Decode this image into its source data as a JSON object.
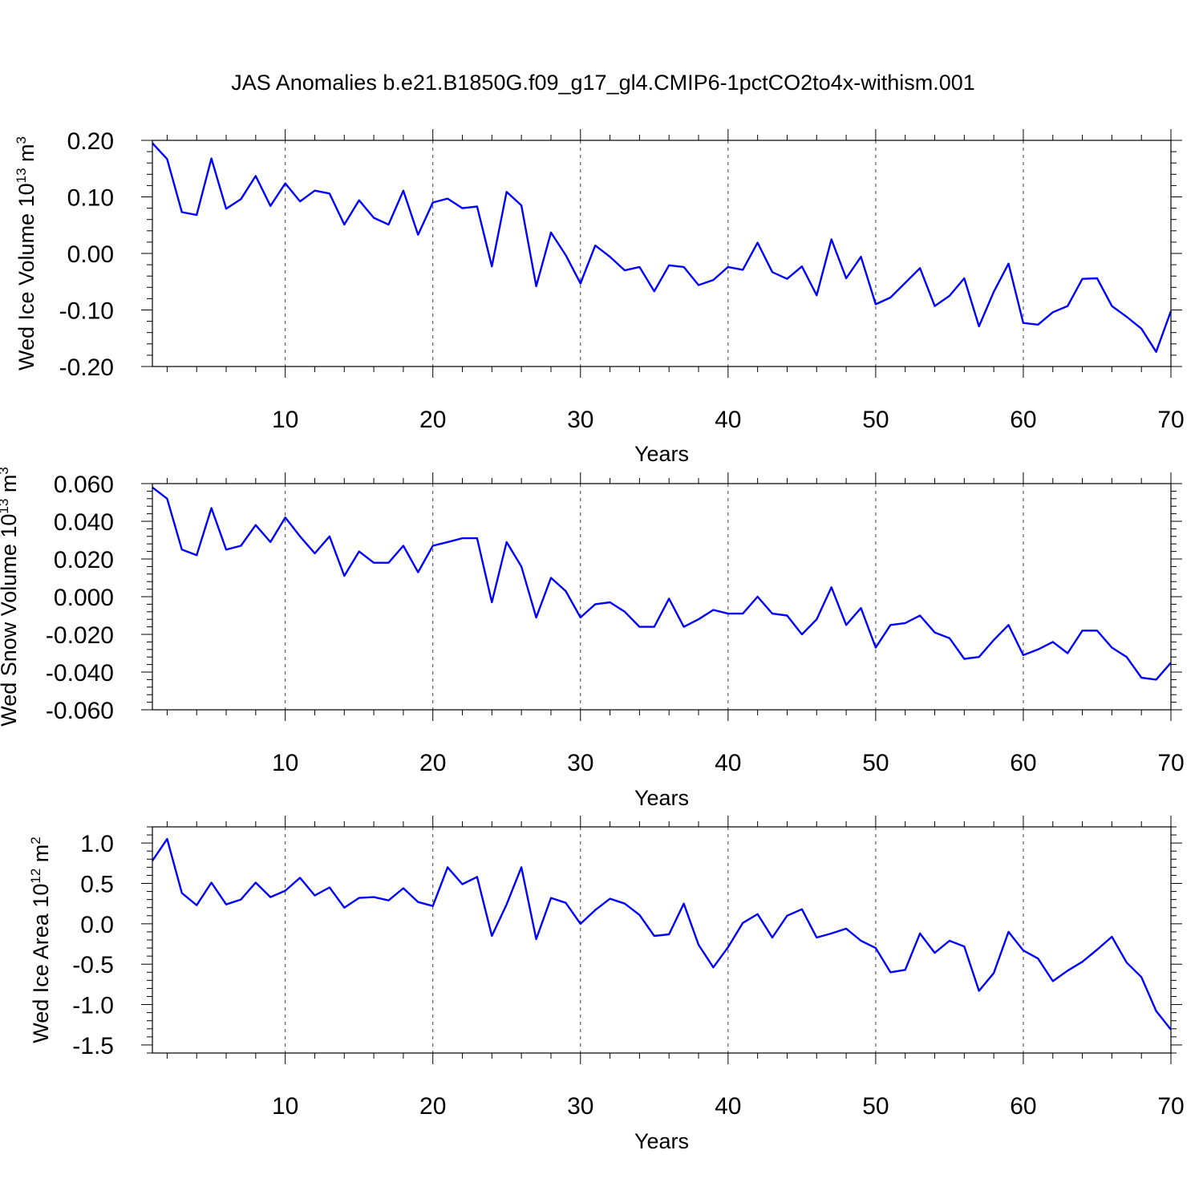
{
  "figure": {
    "title": "JAS Anomalies b.e21.B1850G.f09_g17_gl4.CMIP6-1pctCO2to4x-withism.001"
  },
  "chart_data": [
    {
      "type": "line",
      "xlabel": "Years",
      "ylabel": "Wed Ice Volume",
      "ylabel_unit": {
        "base": "10",
        "exp": "13",
        "unit": "m",
        "unit_exp": "3"
      },
      "xlim": [
        1,
        70
      ],
      "ylim": [
        -0.2,
        0.2
      ],
      "x_ticks": [
        "10",
        "20",
        "30",
        "40",
        "50",
        "60",
        "70"
      ],
      "y_ticks": [
        "0.20",
        "0.10",
        "0.00",
        "-0.10",
        "-0.20"
      ],
      "grid": "vertical dashed at major x ticks",
      "color": "#0000ff",
      "x": [
        1,
        2,
        3,
        4,
        5,
        6,
        7,
        8,
        9,
        10,
        11,
        12,
        13,
        14,
        15,
        16,
        17,
        18,
        19,
        20,
        21,
        22,
        23,
        24,
        25,
        26,
        27,
        28,
        29,
        30,
        31,
        32,
        33,
        34,
        35,
        36,
        37,
        38,
        39,
        40,
        41,
        42,
        43,
        44,
        45,
        46,
        47,
        48,
        49,
        50,
        51,
        52,
        53,
        54,
        55,
        56,
        57,
        58,
        59,
        60,
        61,
        62,
        63,
        64,
        65,
        66,
        67,
        68,
        69,
        70
      ],
      "values": [
        0.195,
        0.167,
        0.073,
        0.068,
        0.168,
        0.079,
        0.096,
        0.137,
        0.084,
        0.124,
        0.092,
        0.111,
        0.106,
        0.051,
        0.094,
        0.063,
        0.051,
        0.111,
        0.033,
        0.09,
        0.097,
        0.08,
        0.083,
        -0.023,
        0.109,
        0.085,
        -0.058,
        0.037,
        -0.003,
        -0.053,
        0.014,
        -0.006,
        -0.03,
        -0.024,
        -0.067,
        -0.021,
        -0.024,
        -0.056,
        -0.047,
        -0.024,
        -0.029,
        0.019,
        -0.033,
        -0.045,
        -0.023,
        -0.074,
        0.025,
        -0.044,
        -0.006,
        -0.09,
        -0.078,
        -0.052,
        -0.026,
        -0.093,
        -0.075,
        -0.044,
        -0.129,
        -0.068,
        -0.018,
        -0.123,
        -0.126,
        -0.104,
        -0.093,
        -0.045,
        -0.044,
        -0.093,
        -0.112,
        -0.133,
        -0.174,
        -0.102
      ]
    },
    {
      "type": "line",
      "xlabel": "Years",
      "ylabel": "Wed Snow Volume",
      "ylabel_unit": {
        "base": "10",
        "exp": "13",
        "unit": "m",
        "unit_exp": "3"
      },
      "xlim": [
        1,
        70
      ],
      "ylim": [
        -0.06,
        0.06
      ],
      "x_ticks": [
        "10",
        "20",
        "30",
        "40",
        "50",
        "60",
        "70"
      ],
      "y_ticks": [
        "0.060",
        "0.040",
        "0.020",
        "0.000",
        "-0.020",
        "-0.040",
        "-0.060"
      ],
      "grid": "vertical dashed at major x ticks",
      "color": "#0000ff",
      "x": [
        1,
        2,
        3,
        4,
        5,
        6,
        7,
        8,
        9,
        10,
        11,
        12,
        13,
        14,
        15,
        16,
        17,
        18,
        19,
        20,
        21,
        22,
        23,
        24,
        25,
        26,
        27,
        28,
        29,
        30,
        31,
        32,
        33,
        34,
        35,
        36,
        37,
        38,
        39,
        40,
        41,
        42,
        43,
        44,
        45,
        46,
        47,
        48,
        49,
        50,
        51,
        52,
        53,
        54,
        55,
        56,
        57,
        58,
        59,
        60,
        61,
        62,
        63,
        64,
        65,
        66,
        67,
        68,
        69,
        70
      ],
      "values": [
        0.058,
        0.052,
        0.025,
        0.022,
        0.047,
        0.025,
        0.027,
        0.038,
        0.029,
        0.042,
        0.032,
        0.023,
        0.032,
        0.011,
        0.024,
        0.018,
        0.018,
        0.027,
        0.013,
        0.027,
        0.029,
        0.031,
        0.031,
        -0.003,
        0.029,
        0.016,
        -0.011,
        0.01,
        0.003,
        -0.011,
        -0.004,
        -0.003,
        -0.008,
        -0.016,
        -0.016,
        -0.001,
        -0.016,
        -0.012,
        -0.007,
        -0.009,
        -0.009,
        0.0,
        -0.009,
        -0.01,
        -0.02,
        -0.012,
        0.005,
        -0.015,
        -0.006,
        -0.027,
        -0.015,
        -0.014,
        -0.01,
        -0.019,
        -0.022,
        -0.033,
        -0.032,
        -0.023,
        -0.015,
        -0.031,
        -0.028,
        -0.024,
        -0.03,
        -0.018,
        -0.018,
        -0.027,
        -0.032,
        -0.043,
        -0.044,
        -0.035
      ]
    },
    {
      "type": "line",
      "xlabel": "Years",
      "ylabel": "Wed Ice Area",
      "ylabel_unit": {
        "base": "10",
        "exp": "12",
        "unit": "m",
        "unit_exp": "2"
      },
      "xlim": [
        1,
        70
      ],
      "ylim": [
        -1.6,
        1.2
      ],
      "x_ticks": [
        "10",
        "20",
        "30",
        "40",
        "50",
        "60",
        "70"
      ],
      "y_ticks": [
        "1.0",
        "0.5",
        "0.0",
        "-0.5",
        "-1.0",
        "-1.5"
      ],
      "grid": "vertical dashed at major x ticks",
      "color": "#0000ff",
      "x": [
        1,
        2,
        3,
        4,
        5,
        6,
        7,
        8,
        9,
        10,
        11,
        12,
        13,
        14,
        15,
        16,
        17,
        18,
        19,
        20,
        21,
        22,
        23,
        24,
        25,
        26,
        27,
        28,
        29,
        30,
        31,
        32,
        33,
        34,
        35,
        36,
        37,
        38,
        39,
        40,
        41,
        42,
        43,
        44,
        45,
        46,
        47,
        48,
        49,
        50,
        51,
        52,
        53,
        54,
        55,
        56,
        57,
        58,
        59,
        60,
        61,
        62,
        63,
        64,
        65,
        66,
        67,
        68,
        69,
        70
      ],
      "values": [
        0.78,
        1.05,
        0.38,
        0.23,
        0.51,
        0.24,
        0.3,
        0.51,
        0.33,
        0.41,
        0.57,
        0.35,
        0.45,
        0.2,
        0.32,
        0.33,
        0.29,
        0.44,
        0.27,
        0.22,
        0.7,
        0.49,
        0.58,
        -0.15,
        0.24,
        0.7,
        -0.19,
        0.32,
        0.26,
        0.0,
        0.17,
        0.31,
        0.25,
        0.11,
        -0.15,
        -0.13,
        0.25,
        -0.26,
        -0.54,
        -0.29,
        0.01,
        0.12,
        -0.17,
        0.1,
        0.18,
        -0.17,
        -0.12,
        -0.06,
        -0.21,
        -0.3,
        -0.6,
        -0.57,
        -0.12,
        -0.36,
        -0.21,
        -0.28,
        -0.83,
        -0.61,
        -0.1,
        -0.33,
        -0.43,
        -0.71,
        -0.58,
        -0.47,
        -0.32,
        -0.16,
        -0.48,
        -0.66,
        -1.08,
        -1.31
      ]
    }
  ]
}
